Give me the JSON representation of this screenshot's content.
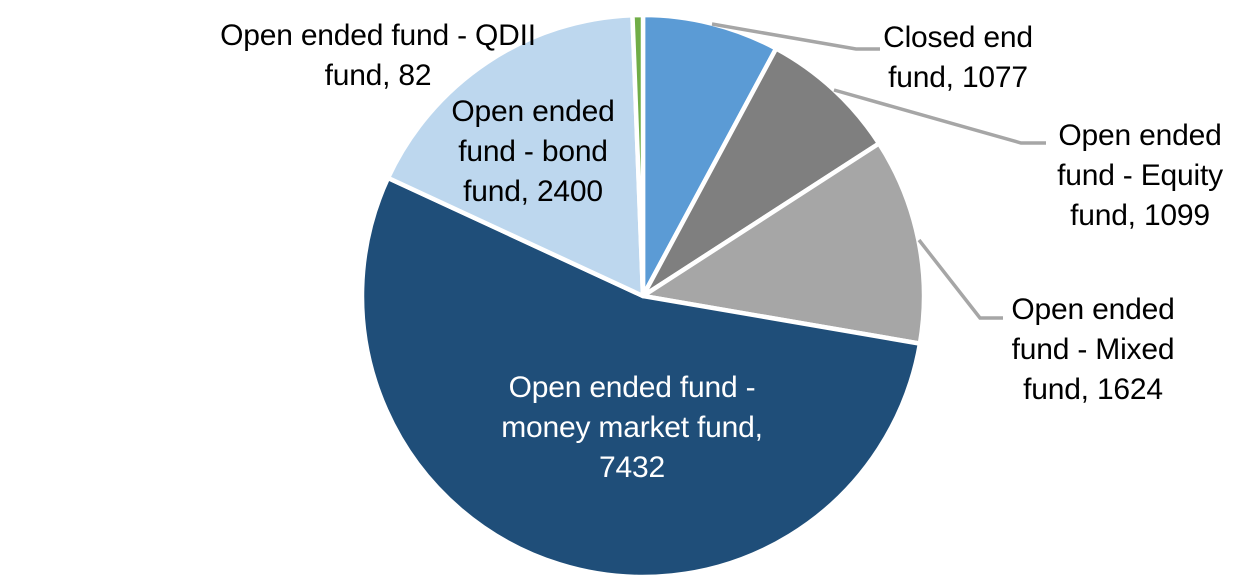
{
  "chart_data": {
    "type": "pie",
    "title": "",
    "legend": "none",
    "background": "#FFFFFF",
    "leader_line_color": "#A6A6A6",
    "label_font_color_default": "#000000",
    "total": 13714,
    "start_angle_deg": 0,
    "direction": "clockwise",
    "slices": [
      {
        "name": "closed-end-fund",
        "label": "Closed end fund",
        "value": 1077,
        "color": "#5B9BD5",
        "label_color": "#000000",
        "label_lines": [
          "Closed end",
          "fund, 1077"
        ]
      },
      {
        "name": "open-ended-equity-fund",
        "label": "Open ended fund - Equity fund",
        "value": 1099,
        "color": "#7F7F7F",
        "label_color": "#000000",
        "label_lines": [
          "Open ended",
          "fund - Equity",
          "fund, 1099"
        ]
      },
      {
        "name": "open-ended-mixed-fund",
        "label": "Open ended fund - Mixed fund",
        "value": 1624,
        "color": "#A6A6A6",
        "label_color": "#000000",
        "label_lines": [
          "Open ended",
          "fund - Mixed",
          "fund, 1624"
        ]
      },
      {
        "name": "open-ended-money-market-fund",
        "label": "Open ended fund - money market fund",
        "value": 7432,
        "color": "#1F4E79",
        "label_color": "#FFFFFF",
        "label_lines": [
          "Open ended fund -",
          "money market fund,",
          "7432"
        ]
      },
      {
        "name": "open-ended-bond-fund",
        "label": "Open ended fund - bond fund",
        "value": 2400,
        "color": "#BDD7EE",
        "label_color": "#000000",
        "label_lines": [
          "Open ended",
          "fund - bond",
          "fund, 2400"
        ]
      },
      {
        "name": "open-ended-qdii-fund",
        "label": "Open ended fund - QDII fund",
        "value": 82,
        "color": "#70AD47",
        "label_color": "#000000",
        "label_lines": [
          "Open ended fund - QDII",
          "fund, 82"
        ]
      }
    ]
  }
}
